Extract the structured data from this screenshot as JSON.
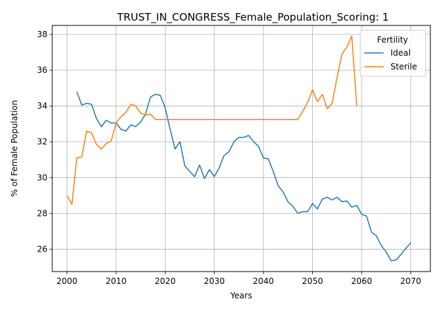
{
  "chart_data": {
    "type": "line",
    "title": "TRUST_IN_CONGRESS_Female_Population_Scoring: 1",
    "xlabel": "Years",
    "ylabel": "% of Female Population",
    "xlim": [
      1997,
      2074
    ],
    "ylim": [
      24.75,
      38.5
    ],
    "xticks": [
      2000,
      2010,
      2020,
      2030,
      2040,
      2050,
      2060,
      2070
    ],
    "yticks": [
      26,
      28,
      30,
      32,
      34,
      36,
      38
    ],
    "grid": true,
    "legend": {
      "title": "Fertility",
      "placement": "top-right"
    },
    "series": [
      {
        "name": "Ideal",
        "color": "#1f77b4",
        "x": [
          2002,
          2003,
          2004,
          2005,
          2006,
          2007,
          2008,
          2009,
          2010,
          2011,
          2012,
          2013,
          2014,
          2015,
          2016,
          2017,
          2018,
          2019,
          2020,
          2021,
          2022,
          2023,
          2024,
          2025,
          2026,
          2027,
          2028,
          2029,
          2030,
          2031,
          2032,
          2033,
          2034,
          2035,
          2036,
          2037,
          2038,
          2039,
          2040,
          2041,
          2042,
          2043,
          2044,
          2045,
          2046,
          2047,
          2048,
          2049,
          2050,
          2051,
          2052,
          2053,
          2054,
          2055,
          2056,
          2057,
          2058,
          2059,
          2060,
          2061,
          2062,
          2063,
          2064,
          2065,
          2066,
          2067,
          2068,
          2069,
          2070
        ],
        "values": [
          34.8,
          34.05,
          34.15,
          34.1,
          33.3,
          32.85,
          33.2,
          33.05,
          33.05,
          32.7,
          32.6,
          32.95,
          32.85,
          33.1,
          33.55,
          34.5,
          34.65,
          34.6,
          33.9,
          32.7,
          31.6,
          32.0,
          30.65,
          30.35,
          30.05,
          30.7,
          29.95,
          30.45,
          30.05,
          30.55,
          31.25,
          31.45,
          32.0,
          32.25,
          32.25,
          32.35,
          32.0,
          31.75,
          31.1,
          31.05,
          30.35,
          29.55,
          29.2,
          28.65,
          28.4,
          28.0,
          28.1,
          28.1,
          28.55,
          28.25,
          28.8,
          28.9,
          28.75,
          28.9,
          28.65,
          28.7,
          28.35,
          28.45,
          27.95,
          27.85,
          26.95,
          26.75,
          26.2,
          25.85,
          25.35,
          25.4,
          25.7,
          26.05,
          26.35
        ]
      },
      {
        "name": "Sterile",
        "color": "#ff7f0e",
        "x": [
          2000,
          2001,
          2002,
          2003,
          2004,
          2005,
          2006,
          2007,
          2008,
          2009,
          2010,
          2011,
          2012,
          2013,
          2014,
          2015,
          2016,
          2017,
          2018,
          2019,
          2020,
          2021,
          2022,
          2023,
          2024,
          2025,
          2026,
          2027,
          2028,
          2029,
          2030,
          2031,
          2032,
          2033,
          2034,
          2035,
          2036,
          2037,
          2038,
          2039,
          2040,
          2041,
          2042,
          2043,
          2044,
          2045,
          2046,
          2047,
          2048,
          2049,
          2050,
          2051,
          2052,
          2053,
          2054,
          2055,
          2056,
          2057,
          2058,
          2059
        ],
        "values": [
          29.0,
          28.5,
          31.1,
          31.15,
          32.6,
          32.5,
          31.85,
          31.6,
          31.9,
          32.05,
          33.05,
          33.4,
          33.65,
          34.1,
          34.0,
          33.6,
          33.5,
          33.55,
          33.25,
          33.25,
          33.25,
          33.25,
          33.25,
          33.25,
          33.25,
          33.25,
          33.25,
          33.25,
          33.25,
          33.25,
          33.25,
          33.25,
          33.25,
          33.25,
          33.25,
          33.25,
          33.25,
          33.25,
          33.25,
          33.25,
          33.25,
          33.25,
          33.25,
          33.25,
          33.25,
          33.25,
          33.25,
          33.25,
          33.7,
          34.2,
          34.9,
          34.25,
          34.65,
          33.85,
          34.15,
          35.6,
          36.9,
          37.3,
          37.9,
          34.0
        ]
      }
    ]
  }
}
